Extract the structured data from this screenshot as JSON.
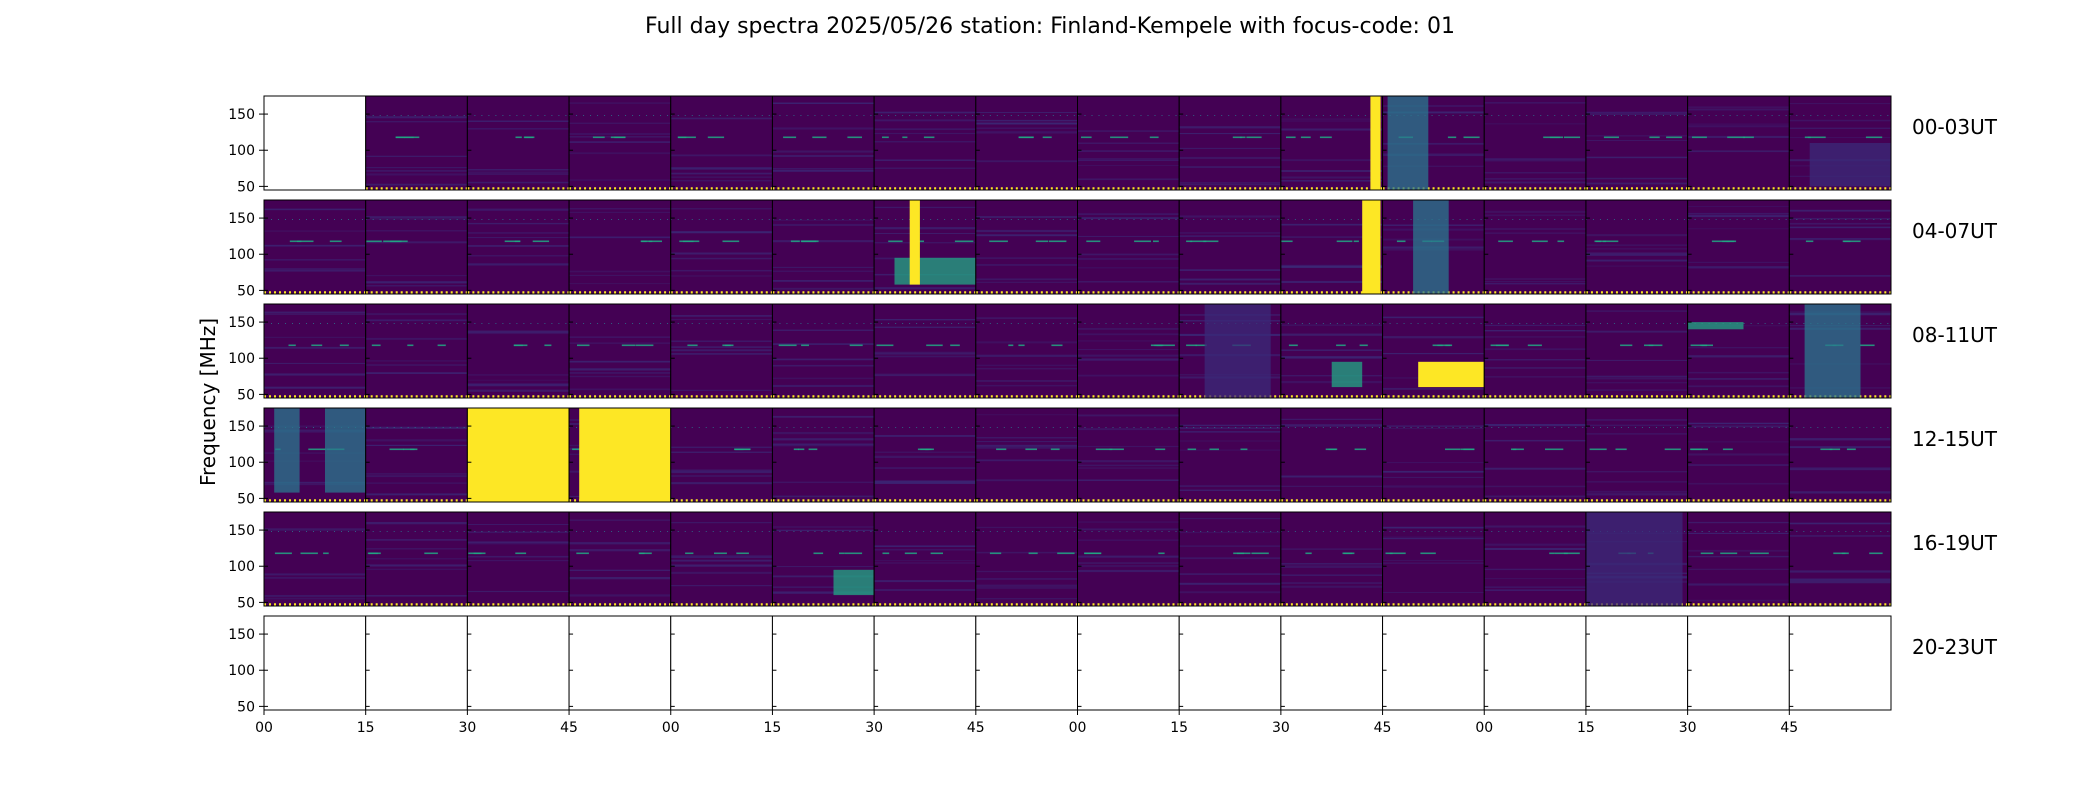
{
  "title": "Full day spectra 2025/05/26 station: Finland-Kempele with focus-code: 01",
  "chart_data": {
    "type": "heatmap",
    "title": "Full day spectra 2025/05/26 station: Finland-Kempele with focus-code: 01",
    "ylabel": "Frequency [MHz]",
    "ylim": [
      45,
      175
    ],
    "y_ticks": [
      "150",
      "100",
      "50"
    ],
    "x_ticks": [
      "00",
      "15",
      "30",
      "45",
      "00",
      "15",
      "30",
      "45",
      "00",
      "15",
      "30",
      "45",
      "00",
      "15",
      "30",
      "45"
    ],
    "colormap": "viridis",
    "colors": {
      "background": "#440154",
      "low": "#3b2a78",
      "medium": "#2a788e",
      "high": "#22a884",
      "saturated": "#fde725"
    },
    "rows": [
      {
        "label": "00-03UT",
        "has_data": true,
        "empty_panels": [
          0
        ]
      },
      {
        "label": "04-07UT",
        "has_data": true,
        "empty_panels": []
      },
      {
        "label": "08-11UT",
        "has_data": true,
        "empty_panels": []
      },
      {
        "label": "12-15UT",
        "has_data": true,
        "empty_panels": []
      },
      {
        "label": "16-19UT",
        "has_data": true,
        "empty_panels": []
      },
      {
        "label": "20-23UT",
        "has_data": false,
        "empty_panels": [
          0,
          1,
          2,
          3,
          4,
          5,
          6,
          7,
          8,
          9,
          10,
          11,
          12,
          13,
          14,
          15
        ]
      }
    ],
    "bursts": [
      {
        "row": 0,
        "panel": 10,
        "x_min": 0.88,
        "x_max": 0.98,
        "f_min": 45,
        "f_max": 175,
        "level": "saturated"
      },
      {
        "row": 0,
        "panel": 11,
        "x_min": 0.05,
        "x_max": 0.45,
        "f_min": 45,
        "f_max": 175,
        "level": "medium"
      },
      {
        "row": 0,
        "panel": 15,
        "x_min": 0.2,
        "x_max": 1.0,
        "f_min": 50,
        "f_max": 110,
        "level": "low"
      },
      {
        "row": 1,
        "panel": 6,
        "x_min": 0.2,
        "x_max": 1.0,
        "f_min": 58,
        "f_max": 95,
        "level": "high"
      },
      {
        "row": 1,
        "panel": 6,
        "x_min": 0.35,
        "x_max": 0.45,
        "f_min": 58,
        "f_max": 175,
        "level": "saturated"
      },
      {
        "row": 1,
        "panel": 10,
        "x_min": 0.8,
        "x_max": 0.98,
        "f_min": 45,
        "f_max": 175,
        "level": "saturated"
      },
      {
        "row": 1,
        "panel": 11,
        "x_min": 0.3,
        "x_max": 0.65,
        "f_min": 45,
        "f_max": 175,
        "level": "medium"
      },
      {
        "row": 2,
        "panel": 9,
        "x_min": 0.25,
        "x_max": 0.9,
        "f_min": 45,
        "f_max": 175,
        "level": "low"
      },
      {
        "row": 2,
        "panel": 10,
        "x_min": 0.5,
        "x_max": 0.8,
        "f_min": 60,
        "f_max": 95,
        "level": "high"
      },
      {
        "row": 2,
        "panel": 11,
        "x_min": 0.35,
        "x_max": 1.0,
        "f_min": 60,
        "f_max": 95,
        "level": "saturated"
      },
      {
        "row": 2,
        "panel": 14,
        "x_min": 0.0,
        "x_max": 0.55,
        "f_min": 140,
        "f_max": 150,
        "level": "high"
      },
      {
        "row": 2,
        "panel": 15,
        "x_min": 0.15,
        "x_max": 0.7,
        "f_min": 45,
        "f_max": 175,
        "level": "medium"
      },
      {
        "row": 3,
        "panel": 0,
        "x_min": 0.1,
        "x_max": 0.35,
        "f_min": 58,
        "f_max": 175,
        "level": "medium"
      },
      {
        "row": 3,
        "panel": 0,
        "x_min": 0.6,
        "x_max": 1.0,
        "f_min": 58,
        "f_max": 175,
        "level": "medium"
      },
      {
        "row": 3,
        "panel": 2,
        "x_min": 0.0,
        "x_max": 1.0,
        "f_min": 45,
        "f_max": 175,
        "level": "saturated"
      },
      {
        "row": 3,
        "panel": 3,
        "x_min": 0.1,
        "x_max": 1.0,
        "f_min": 45,
        "f_max": 175,
        "level": "saturated"
      },
      {
        "row": 4,
        "panel": 5,
        "x_min": 0.6,
        "x_max": 1.0,
        "f_min": 60,
        "f_max": 95,
        "level": "high"
      },
      {
        "row": 4,
        "panel": 13,
        "x_min": 0.0,
        "x_max": 0.95,
        "f_min": 45,
        "f_max": 175,
        "level": "low"
      }
    ]
  }
}
